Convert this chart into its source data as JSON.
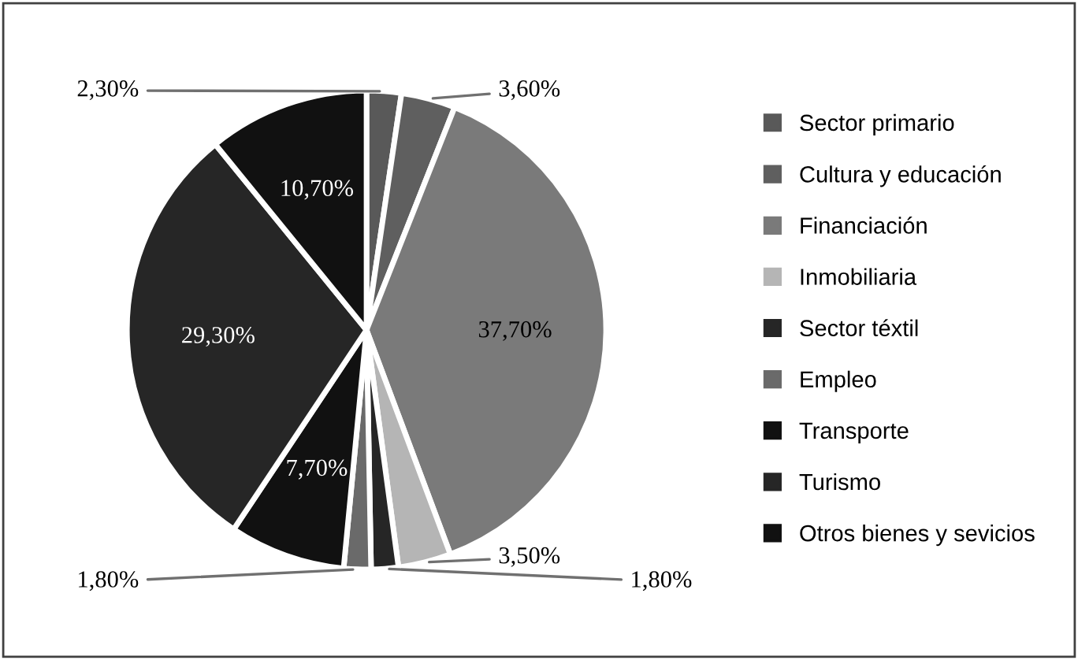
{
  "chart_data": {
    "type": "pie",
    "categories": [
      "Sector primario",
      "Cultura y educación",
      "Financiación",
      "Inmobiliaria",
      "Sector téxtil",
      "Empleo",
      "Transporte",
      "Turismo",
      "Otros bienes y sevicios"
    ],
    "values": [
      2.3,
      3.6,
      37.7,
      3.5,
      1.8,
      1.8,
      7.7,
      29.3,
      10.7
    ],
    "value_labels": [
      "2,30%",
      "3,60%",
      "37,70%",
      "3,50%",
      "1,80%",
      "1,80%",
      "7,70%",
      "29,30%",
      "10,70%"
    ],
    "colors": [
      "#595959",
      "#5f5f5f",
      "#7a7a7a",
      "#b5b5b5",
      "#262626",
      "#6a6a6a",
      "#111111",
      "#262626",
      "#111111"
    ],
    "legend": "right"
  }
}
